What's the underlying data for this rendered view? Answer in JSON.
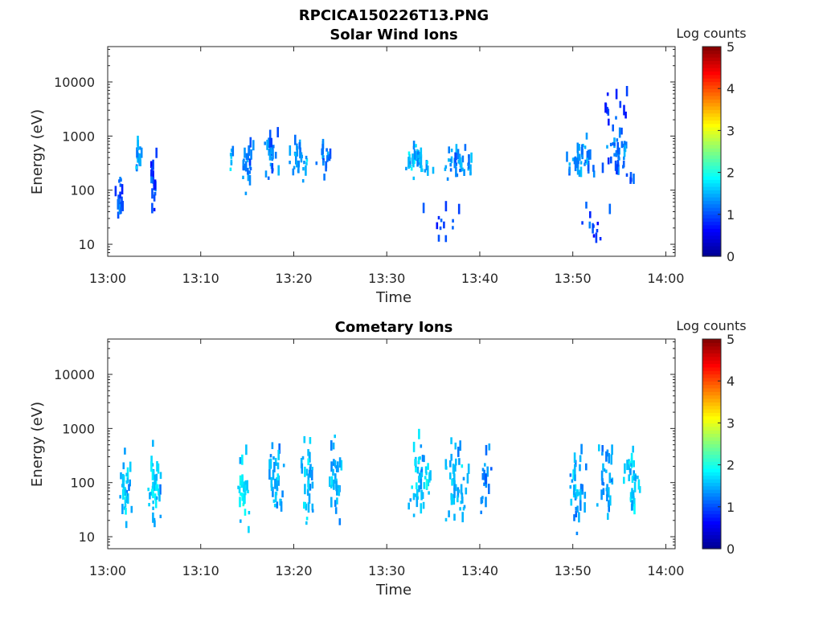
{
  "window": {
    "title": "RPCICA150226T13.PNG"
  },
  "colors": {
    "colormap": [
      "#00008f",
      "#0000ff",
      "#0080ff",
      "#00ffff",
      "#80ff80",
      "#ffff00",
      "#ff8000",
      "#ff0000",
      "#800000"
    ],
    "frame": "#262626"
  },
  "chart_data": [
    {
      "type": "heatmap",
      "title": "Solar Wind Ions",
      "xlabel": "Time",
      "ylabel": "Energy (eV)",
      "yscale": "log",
      "ylim": [
        6,
        45000
      ],
      "xlim_minutes": [
        0,
        61
      ],
      "x_ticks": [
        {
          "v": 0,
          "label": "13:00"
        },
        {
          "v": 10,
          "label": "13:10"
        },
        {
          "v": 20,
          "label": "13:20"
        },
        {
          "v": 30,
          "label": "13:30"
        },
        {
          "v": 40,
          "label": "13:40"
        },
        {
          "v": 50,
          "label": "13:50"
        },
        {
          "v": 60,
          "label": "14:00"
        }
      ],
      "y_ticks": [
        {
          "v": 10,
          "label": "10"
        },
        {
          "v": 100,
          "label": "100"
        },
        {
          "v": 1000,
          "label": "1000"
        },
        {
          "v": 10000,
          "label": "10000"
        }
      ],
      "colorbar": {
        "label": "Log counts",
        "range": [
          0,
          5
        ],
        "ticks": [
          "0",
          "1",
          "2",
          "3",
          "4",
          "5"
        ]
      },
      "clusters": [
        {
          "t": 1.2,
          "e": 70,
          "n": 18,
          "spread_t": 0.6,
          "spread_e": 0.6,
          "val": 1.0
        },
        {
          "t": 3.2,
          "e": 350,
          "n": 14,
          "spread_t": 0.8,
          "spread_e": 0.35,
          "val": 1.4
        },
        {
          "t": 4.8,
          "e": 120,
          "n": 18,
          "spread_t": 0.5,
          "spread_e": 0.8,
          "val": 1.0
        },
        {
          "t": 13.2,
          "e": 350,
          "n": 8,
          "spread_t": 0.3,
          "spread_e": 0.3,
          "val": 1.5
        },
        {
          "t": 14.8,
          "e": 300,
          "n": 24,
          "spread_t": 1.0,
          "spread_e": 0.6,
          "val": 1.3
        },
        {
          "t": 17.5,
          "e": 400,
          "n": 28,
          "spread_t": 1.0,
          "spread_e": 0.6,
          "val": 1.2
        },
        {
          "t": 20.5,
          "e": 350,
          "n": 28,
          "spread_t": 1.2,
          "spread_e": 0.5,
          "val": 1.4
        },
        {
          "t": 23.2,
          "e": 350,
          "n": 18,
          "spread_t": 1.0,
          "spread_e": 0.5,
          "val": 1.2
        },
        {
          "t": 33.2,
          "e": 300,
          "n": 40,
          "spread_t": 2.0,
          "spread_e": 0.4,
          "val": 1.5
        },
        {
          "t": 37.5,
          "e": 280,
          "n": 38,
          "spread_t": 2.2,
          "spread_e": 0.4,
          "val": 1.3
        },
        {
          "t": 35.5,
          "e": 20,
          "n": 12,
          "spread_t": 3.0,
          "spread_e": 0.5,
          "val": 0.9
        },
        {
          "t": 50.5,
          "e": 300,
          "n": 36,
          "spread_t": 2.0,
          "spread_e": 0.6,
          "val": 1.3
        },
        {
          "t": 55.0,
          "e": 350,
          "n": 40,
          "spread_t": 2.5,
          "spread_e": 0.8,
          "val": 1.2
        },
        {
          "t": 54.0,
          "e": 3000,
          "n": 14,
          "spread_t": 3.0,
          "spread_e": 0.6,
          "val": 0.9
        },
        {
          "t": 52.0,
          "e": 20,
          "n": 12,
          "spread_t": 3.0,
          "spread_e": 0.5,
          "val": 0.9
        }
      ]
    },
    {
      "type": "heatmap",
      "title": "Cometary Ions",
      "xlabel": "Time",
      "ylabel": "Energy (eV)",
      "yscale": "log",
      "ylim": [
        6,
        45000
      ],
      "xlim_minutes": [
        0,
        61
      ],
      "x_ticks": [
        {
          "v": 0,
          "label": "13:00"
        },
        {
          "v": 10,
          "label": "13:10"
        },
        {
          "v": 20,
          "label": "13:20"
        },
        {
          "v": 30,
          "label": "13:30"
        },
        {
          "v": 40,
          "label": "13:40"
        },
        {
          "v": 50,
          "label": "13:50"
        },
        {
          "v": 60,
          "label": "14:00"
        }
      ],
      "y_ticks": [
        {
          "v": 10,
          "label": "10"
        },
        {
          "v": 100,
          "label": "100"
        },
        {
          "v": 1000,
          "label": "1000"
        },
        {
          "v": 10000,
          "label": "10000"
        }
      ],
      "colorbar": {
        "label": "Log counts",
        "range": [
          0,
          5
        ],
        "ticks": [
          "0",
          "1",
          "2",
          "3",
          "4",
          "5"
        ]
      },
      "clusters": [
        {
          "t": 1.8,
          "e": 60,
          "n": 30,
          "spread_t": 0.8,
          "spread_e": 1.0,
          "val": 1.6
        },
        {
          "t": 5.0,
          "e": 80,
          "n": 34,
          "spread_t": 0.9,
          "spread_e": 1.0,
          "val": 1.6
        },
        {
          "t": 14.5,
          "e": 80,
          "n": 34,
          "spread_t": 0.9,
          "spread_e": 1.0,
          "val": 1.7
        },
        {
          "t": 18.0,
          "e": 80,
          "n": 34,
          "spread_t": 1.0,
          "spread_e": 1.0,
          "val": 1.5
        },
        {
          "t": 21.5,
          "e": 100,
          "n": 34,
          "spread_t": 1.0,
          "spread_e": 1.0,
          "val": 1.5
        },
        {
          "t": 24.3,
          "e": 120,
          "n": 30,
          "spread_t": 0.9,
          "spread_e": 1.0,
          "val": 1.5
        },
        {
          "t": 33.5,
          "e": 100,
          "n": 44,
          "spread_t": 1.6,
          "spread_e": 1.0,
          "val": 1.6
        },
        {
          "t": 37.5,
          "e": 100,
          "n": 44,
          "spread_t": 1.6,
          "spread_e": 1.0,
          "val": 1.5
        },
        {
          "t": 40.5,
          "e": 80,
          "n": 20,
          "spread_t": 0.8,
          "spread_e": 1.0,
          "val": 1.3
        },
        {
          "t": 50.5,
          "e": 80,
          "n": 36,
          "spread_t": 1.3,
          "spread_e": 1.0,
          "val": 1.5
        },
        {
          "t": 53.5,
          "e": 120,
          "n": 30,
          "spread_t": 1.3,
          "spread_e": 1.0,
          "val": 1.4
        },
        {
          "t": 56.3,
          "e": 80,
          "n": 34,
          "spread_t": 1.0,
          "spread_e": 1.0,
          "val": 1.6
        }
      ]
    }
  ]
}
